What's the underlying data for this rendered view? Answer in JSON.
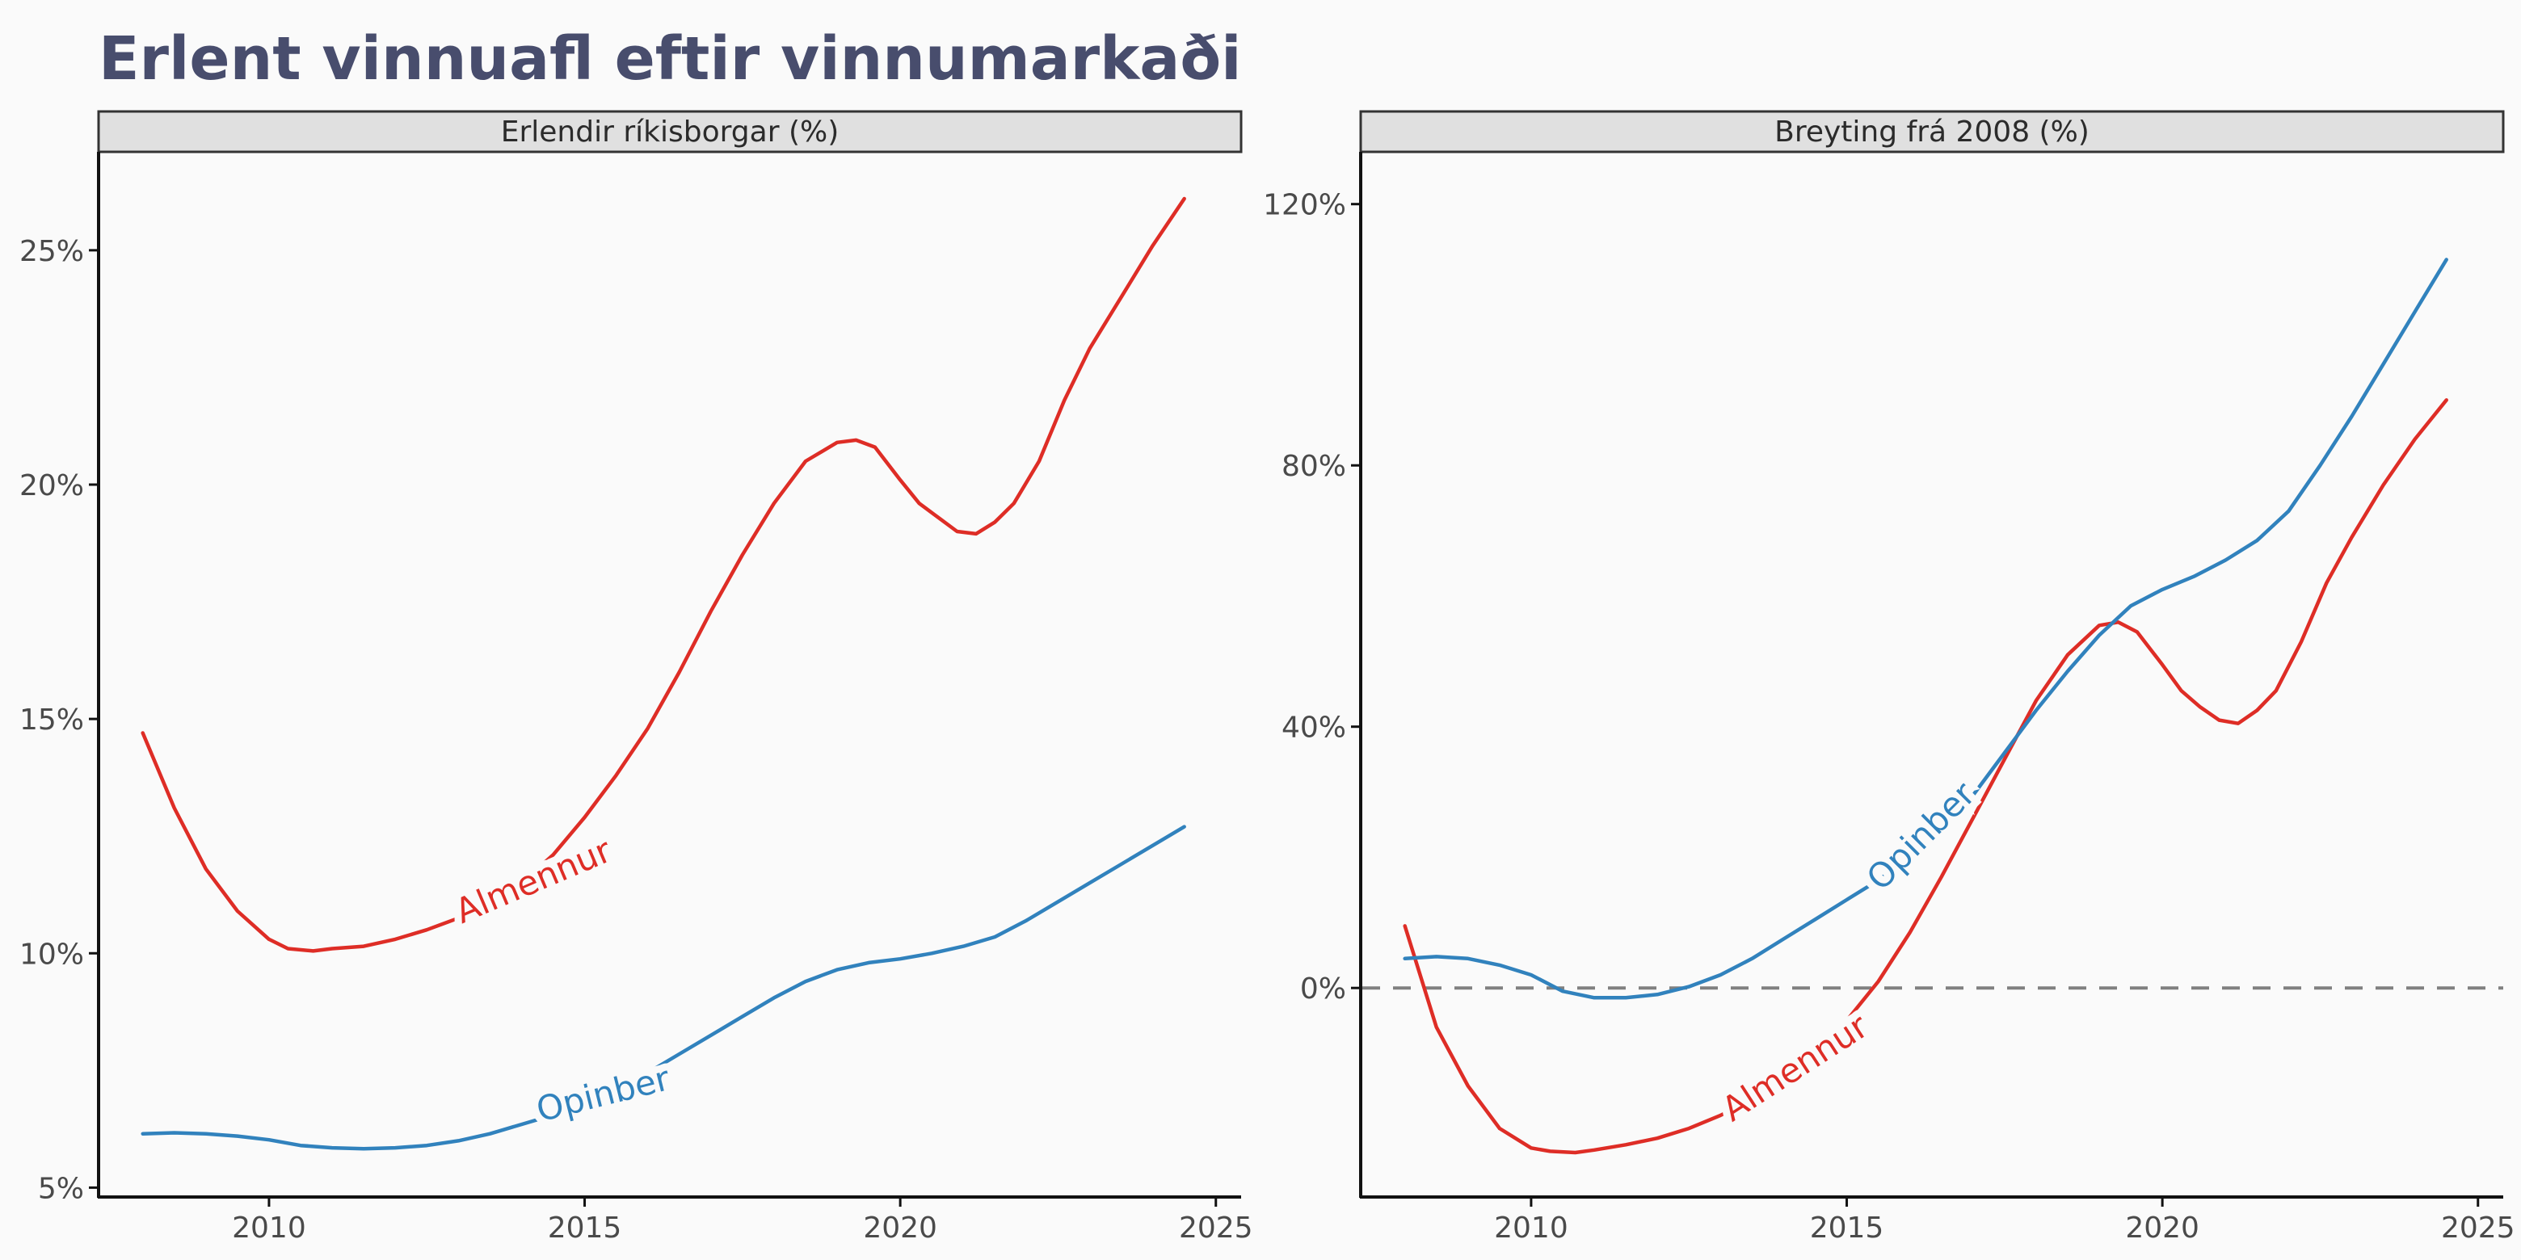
{
  "title": "Erlent vinnuafl eftir vinnumarkaði",
  "colors": {
    "almennur": "#de2d26",
    "opinber": "#3182bd",
    "title": "#484d6d",
    "axis_text": "#4a4a4a",
    "strip_fill": "#e0e0e0",
    "zero_line": "#808080"
  },
  "chart_data": [
    {
      "type": "line",
      "strip": "Erlendir ríkisborgar (%)",
      "xlim": [
        2007.3,
        2025.4
      ],
      "x_ticks": [
        2010,
        2015,
        2020,
        2025
      ],
      "x_tick_labels": [
        "2010",
        "2015",
        "2020",
        "2025"
      ],
      "ylim": [
        4.8,
        27.1
      ],
      "y_ticks": [
        5,
        10,
        15,
        20,
        25
      ],
      "y_tick_labels": [
        "5%",
        "10%",
        "15%",
        "20%",
        "25%"
      ],
      "series": [
        {
          "name": "Almennur",
          "color_key": "almennur",
          "label_at": [
            2014.2,
            11.5
          ],
          "label_angle": -23,
          "x": [
            2008.0,
            2008.5,
            2009.0,
            2009.5,
            2010.0,
            2010.3,
            2010.7,
            2011.0,
            2011.5,
            2012.0,
            2012.5,
            2013.0,
            2013.5,
            2014.0,
            2014.5,
            2015.0,
            2015.5,
            2016.0,
            2016.5,
            2017.0,
            2017.5,
            2018.0,
            2018.5,
            2019.0,
            2019.3,
            2019.6,
            2020.0,
            2020.3,
            2020.6,
            2020.9,
            2021.2,
            2021.5,
            2021.8,
            2022.2,
            2022.6,
            2023.0,
            2023.5,
            2024.0,
            2024.5
          ],
          "y": [
            14.7,
            13.1,
            11.8,
            10.9,
            10.3,
            10.1,
            10.05,
            10.1,
            10.15,
            10.3,
            10.5,
            10.75,
            11.05,
            11.5,
            12.1,
            12.9,
            13.8,
            14.8,
            16.0,
            17.3,
            18.5,
            19.6,
            20.5,
            20.9,
            20.95,
            20.8,
            20.1,
            19.6,
            19.3,
            19.0,
            18.95,
            19.2,
            19.6,
            20.5,
            21.8,
            22.9,
            24.0,
            25.1,
            26.1
          ]
        },
        {
          "name": "Opinber",
          "color_key": "opinber",
          "label_at": [
            2015.3,
            6.95
          ],
          "label_angle": -14,
          "x": [
            2008.0,
            2008.5,
            2009.0,
            2009.5,
            2010.0,
            2010.5,
            2011.0,
            2011.5,
            2012.0,
            2012.5,
            2013.0,
            2013.5,
            2014.0,
            2014.5,
            2015.0,
            2015.5,
            2016.0,
            2016.5,
            2017.0,
            2017.5,
            2018.0,
            2018.5,
            2019.0,
            2019.5,
            2020.0,
            2020.5,
            2021.0,
            2021.5,
            2022.0,
            2022.5,
            2023.0,
            2023.5,
            2024.0,
            2024.5
          ],
          "y": [
            6.15,
            6.17,
            6.15,
            6.1,
            6.02,
            5.9,
            5.85,
            5.83,
            5.85,
            5.9,
            6.0,
            6.15,
            6.35,
            6.55,
            6.8,
            7.1,
            7.45,
            7.85,
            8.25,
            8.65,
            9.05,
            9.4,
            9.65,
            9.8,
            9.88,
            10.0,
            10.15,
            10.35,
            10.7,
            11.1,
            11.5,
            11.9,
            12.3,
            12.7
          ]
        }
      ]
    },
    {
      "type": "line",
      "strip": "Breyting frá 2008 (%)",
      "xlim": [
        2007.3,
        2025.4
      ],
      "x_ticks": [
        2010,
        2015,
        2020,
        2025
      ],
      "x_tick_labels": [
        "2010",
        "2015",
        "2020",
        "2025"
      ],
      "ylim": [
        -32,
        128
      ],
      "y_ticks": [
        0,
        40,
        80,
        120
      ],
      "y_tick_labels": [
        "0%",
        "40%",
        "80%",
        "120%"
      ],
      "reference_line": 0,
      "series": [
        {
          "name": "Almennur",
          "color_key": "almennur",
          "label_at": [
            2014.2,
            -12.5
          ],
          "label_angle": -33,
          "x": [
            2008.0,
            2008.5,
            2009.0,
            2009.5,
            2010.0,
            2010.3,
            2010.7,
            2011.0,
            2011.5,
            2012.0,
            2012.5,
            2013.0,
            2013.5,
            2014.0,
            2014.5,
            2015.0,
            2015.5,
            2016.0,
            2016.5,
            2017.0,
            2017.5,
            2018.0,
            2018.5,
            2019.0,
            2019.3,
            2019.6,
            2020.0,
            2020.3,
            2020.6,
            2020.9,
            2021.2,
            2021.5,
            2021.8,
            2022.2,
            2022.6,
            2023.0,
            2023.5,
            2024.0,
            2024.5
          ],
          "y": [
            9.5,
            -6.0,
            -15.0,
            -21.5,
            -24.5,
            -25.0,
            -25.2,
            -24.8,
            -24.0,
            -23.0,
            -21.5,
            -19.5,
            -17.2,
            -14.5,
            -10.5,
            -5.0,
            1.0,
            8.5,
            17.0,
            26.0,
            35.0,
            44.0,
            51.0,
            55.5,
            56.0,
            54.5,
            49.5,
            45.5,
            43.0,
            41.0,
            40.5,
            42.5,
            45.5,
            53.0,
            62.0,
            69.0,
            77.0,
            84.0,
            90.0
          ]
        },
        {
          "name": "Opinber",
          "color_key": "opinber",
          "label_at": [
            2016.2,
            23.0
          ],
          "label_angle": -45,
          "x": [
            2008.0,
            2008.5,
            2009.0,
            2009.5,
            2010.0,
            2010.5,
            2011.0,
            2011.5,
            2012.0,
            2012.5,
            2013.0,
            2013.5,
            2014.0,
            2014.5,
            2015.0,
            2015.5,
            2016.0,
            2016.5,
            2017.0,
            2017.5,
            2018.0,
            2018.5,
            2019.0,
            2019.5,
            2020.0,
            2020.5,
            2021.0,
            2021.5,
            2022.0,
            2022.5,
            2023.0,
            2023.5,
            2024.0,
            2024.5
          ],
          "y": [
            4.5,
            4.8,
            4.5,
            3.5,
            2.0,
            -0.5,
            -1.5,
            -1.5,
            -1.0,
            0.2,
            2.0,
            4.5,
            7.5,
            10.5,
            13.5,
            16.5,
            20.0,
            24.0,
            29.5,
            36.0,
            42.5,
            48.5,
            54.0,
            58.5,
            61.0,
            63.0,
            65.5,
            68.5,
            73.0,
            80.0,
            87.5,
            95.5,
            103.5,
            111.5
          ]
        }
      ]
    }
  ]
}
